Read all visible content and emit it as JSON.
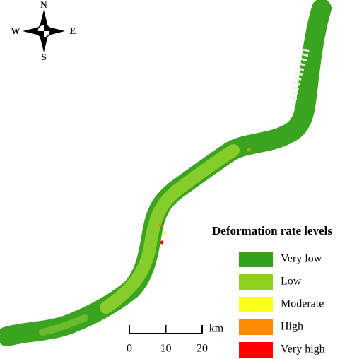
{
  "compass": {
    "north": "N",
    "south": "S",
    "east": "E",
    "west": "W"
  },
  "legend": {
    "title": "Deformation rate levels",
    "items": [
      {
        "label": "Very low",
        "color": "#33a11c"
      },
      {
        "label": "Low",
        "color": "#8fd11c"
      },
      {
        "label": "Moderate",
        "color": "#ffff1e"
      },
      {
        "label": "High",
        "color": "#ff8c00"
      },
      {
        "label": "Very high",
        "color": "#ff0000"
      }
    ]
  },
  "scale_bar": {
    "ticks": [
      0,
      10,
      20
    ],
    "unit": "km"
  }
}
